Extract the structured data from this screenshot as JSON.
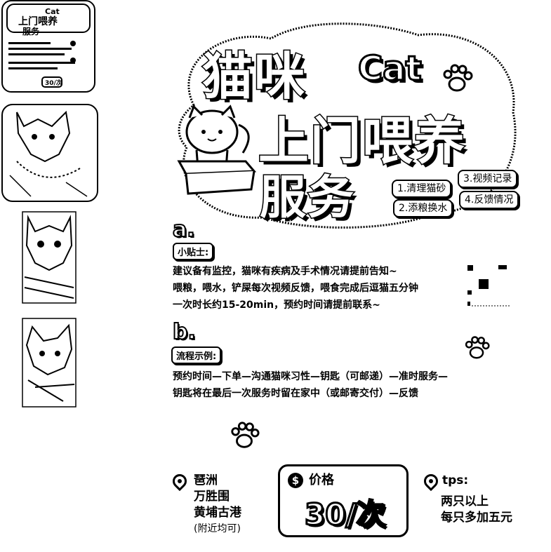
{
  "thumbnails": [
    {
      "label": "thumb-poster",
      "title_small": "上门喂养",
      "sub_small": "服务",
      "cat_small": "Cat",
      "price_small": "30/次"
    },
    {
      "label": "thumb-cat-1"
    },
    {
      "label": "thumb-cat-2"
    },
    {
      "label": "thumb-cat-3"
    }
  ],
  "title": {
    "line1": "猫咪",
    "cat": "Cat",
    "line2": "上门喂养",
    "line3": "服务"
  },
  "services": [
    "1.清理猫砂",
    "3.视频记录",
    "2.添粮换水",
    "4.反馈情况"
  ],
  "section_a": {
    "letter": "a.",
    "tag": "小贴士:",
    "lines": [
      "建议备有监控，猫咪有疾病及手术情况请提前告知~",
      "喂粮，喂水，铲屎每次视频反馈，喂食完成后逗猫五分钟",
      "一次时长约15-20min，预约时间请提前联系~"
    ]
  },
  "section_b": {
    "letter": "b.",
    "tag": "流程示例:",
    "lines": [
      "预约时间—下单—沟通猫咪习性—钥匙（可邮递）—准时服务—",
      "钥匙将在最后一次服务时留在家中（或邮寄交付）—反馈"
    ]
  },
  "location": {
    "lines": [
      "琶洲",
      "万胜围",
      "黄埔古港"
    ],
    "note": "(附近均可)"
  },
  "price": {
    "label": "价格",
    "symbol": "$",
    "value": "30/次"
  },
  "tips": {
    "label": "tps:",
    "lines": [
      "两只以上",
      "每只多加五元"
    ]
  }
}
